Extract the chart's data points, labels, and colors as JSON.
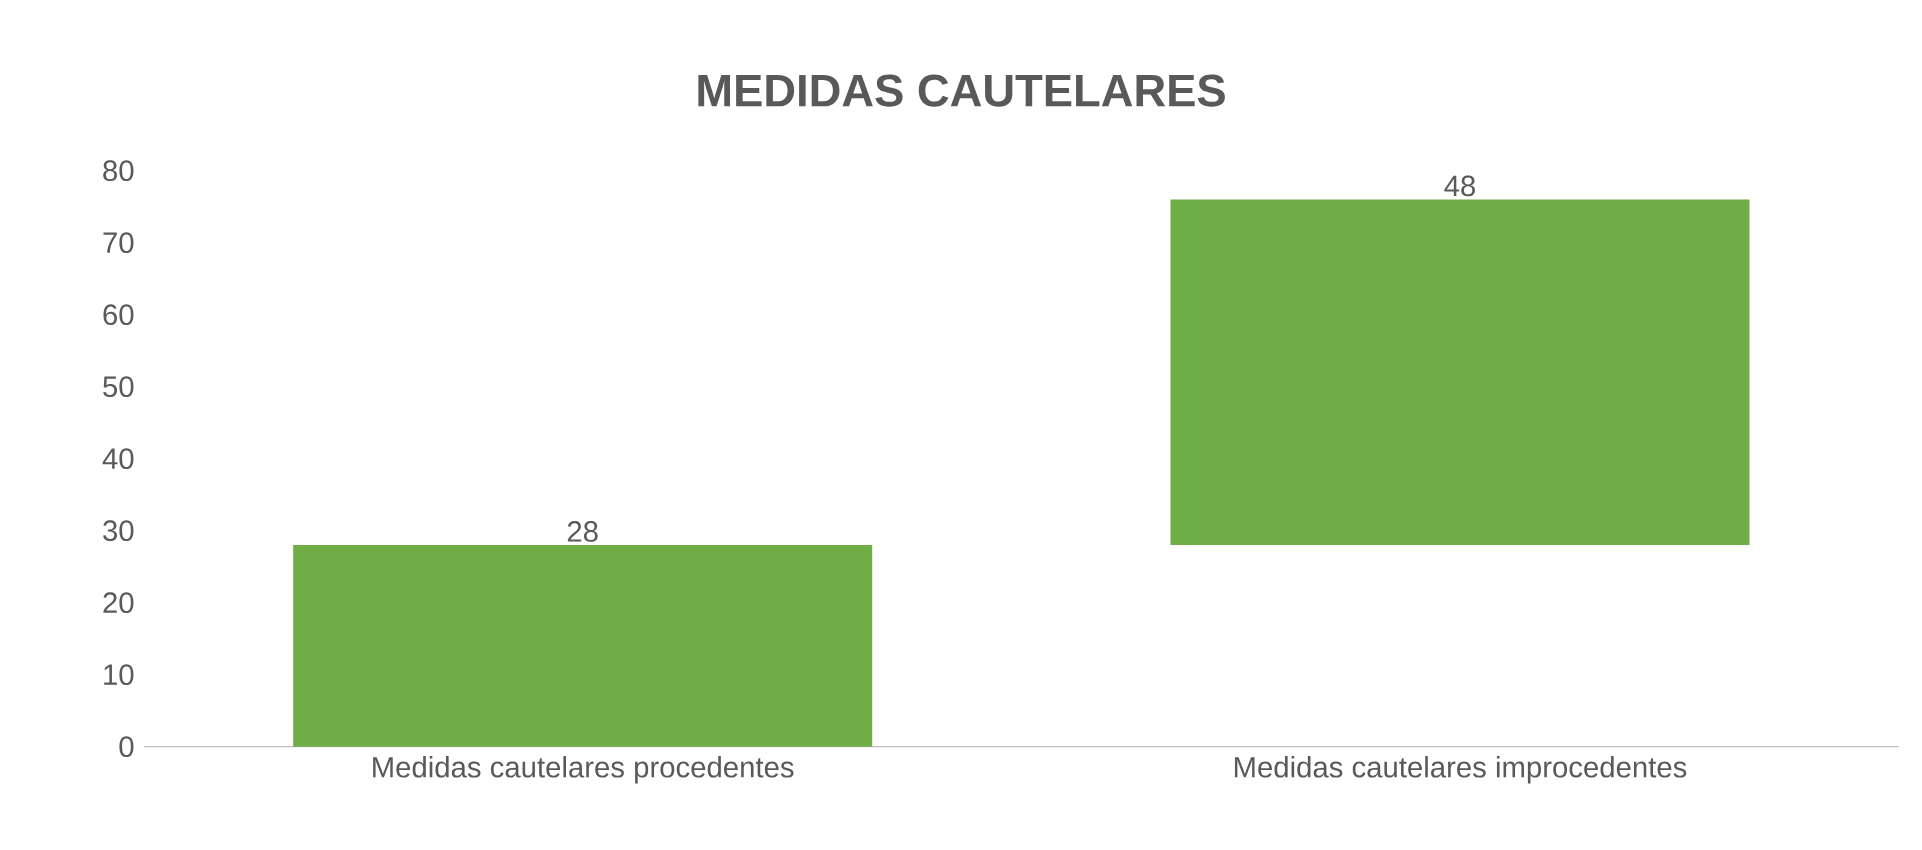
{
  "chart_data": {
    "type": "bar",
    "title": "MEDIDAS CAUTELARES",
    "categories": [
      "Medidas cautelares procedentes",
      "Medidas cautelares improcedentes"
    ],
    "values": [
      28,
      48
    ],
    "base": [
      0,
      28
    ],
    "color": "#70ad47",
    "data_labels": true,
    "ylim": [
      0,
      80
    ],
    "yticks": [
      0,
      10,
      20,
      30,
      40,
      50,
      60,
      70,
      80
    ],
    "grid": false
  }
}
